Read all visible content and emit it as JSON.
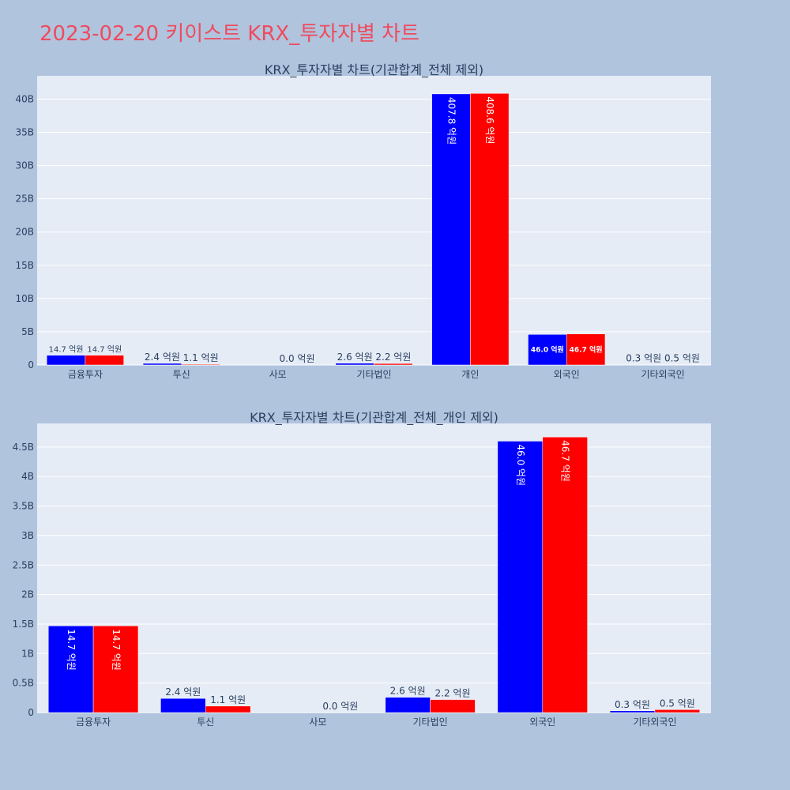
{
  "page": {
    "title": "2023-02-20 키이스트 KRX_투자자별 차트"
  },
  "colors": {
    "page_bg": "#b0c4de",
    "plot_bg": "#e5ecf6",
    "title": "#ef4b5e",
    "series_blue": "#0000ff",
    "series_red": "#ff0000",
    "axis_text": "#2a3f5f"
  },
  "chart_data": [
    {
      "type": "bar",
      "title": "KRX_투자자별 차트(기관합계_전체 제외)",
      "categories": [
        "금융투자",
        "투신",
        "사모",
        "기타법인",
        "개인",
        "외국인",
        "기타외국인"
      ],
      "series": [
        {
          "name": "series-1",
          "color": "#0000ff",
          "values": [
            1470000000,
            240000000,
            0,
            260000000,
            40780000000,
            4600000000,
            30000000
          ],
          "labels": [
            "14.7 억원",
            "2.4 억원",
            "",
            "2.6 억원",
            "407.8 억원",
            "46.0 억원",
            "0.3 억원"
          ]
        },
        {
          "name": "series-2",
          "color": "#ff0000",
          "values": [
            1470000000,
            110000000,
            0,
            220000000,
            40860000000,
            4670000000,
            50000000
          ],
          "labels": [
            "14.7 억원",
            "1.1 억원",
            "0.0 억원",
            "2.2 억원",
            "408.6 억원",
            "46.7 억원",
            "0.5 억원"
          ]
        }
      ],
      "ylim": [
        0,
        43500000000
      ],
      "yticks": [
        0,
        5000000000,
        10000000000,
        15000000000,
        20000000000,
        25000000000,
        30000000000,
        35000000000,
        40000000000
      ],
      "yticklabels": [
        "0",
        "5B",
        "10B",
        "15B",
        "20B",
        "25B",
        "30B",
        "35B",
        "40B"
      ],
      "xlabel": "",
      "ylabel": ""
    },
    {
      "type": "bar",
      "title": "KRX_투자자별 차트(기관합계_전체_개인 제외)",
      "categories": [
        "금융투자",
        "투신",
        "사모",
        "기타법인",
        "외국인",
        "기타외국인"
      ],
      "series": [
        {
          "name": "series-1",
          "color": "#0000ff",
          "values": [
            1470000000,
            240000000,
            0,
            260000000,
            4600000000,
            30000000
          ],
          "labels": [
            "14.7 억원",
            "2.4 억원",
            "",
            "2.6 억원",
            "46.0 억원",
            "0.3 억원"
          ]
        },
        {
          "name": "series-2",
          "color": "#ff0000",
          "values": [
            1470000000,
            110000000,
            0,
            220000000,
            4670000000,
            50000000
          ],
          "labels": [
            "14.7 억원",
            "1.1 억원",
            "0.0 억원",
            "2.2 억원",
            "46.7 억원",
            "0.5 억원"
          ]
        }
      ],
      "ylim": [
        0,
        4900000000
      ],
      "yticks": [
        0,
        500000000,
        1000000000,
        1500000000,
        2000000000,
        2500000000,
        3000000000,
        3500000000,
        4000000000,
        4500000000
      ],
      "yticklabels": [
        "0",
        "0.5B",
        "1B",
        "1.5B",
        "2B",
        "2.5B",
        "3B",
        "3.5B",
        "4B",
        "4.5B"
      ],
      "xlabel": "",
      "ylabel": ""
    }
  ]
}
